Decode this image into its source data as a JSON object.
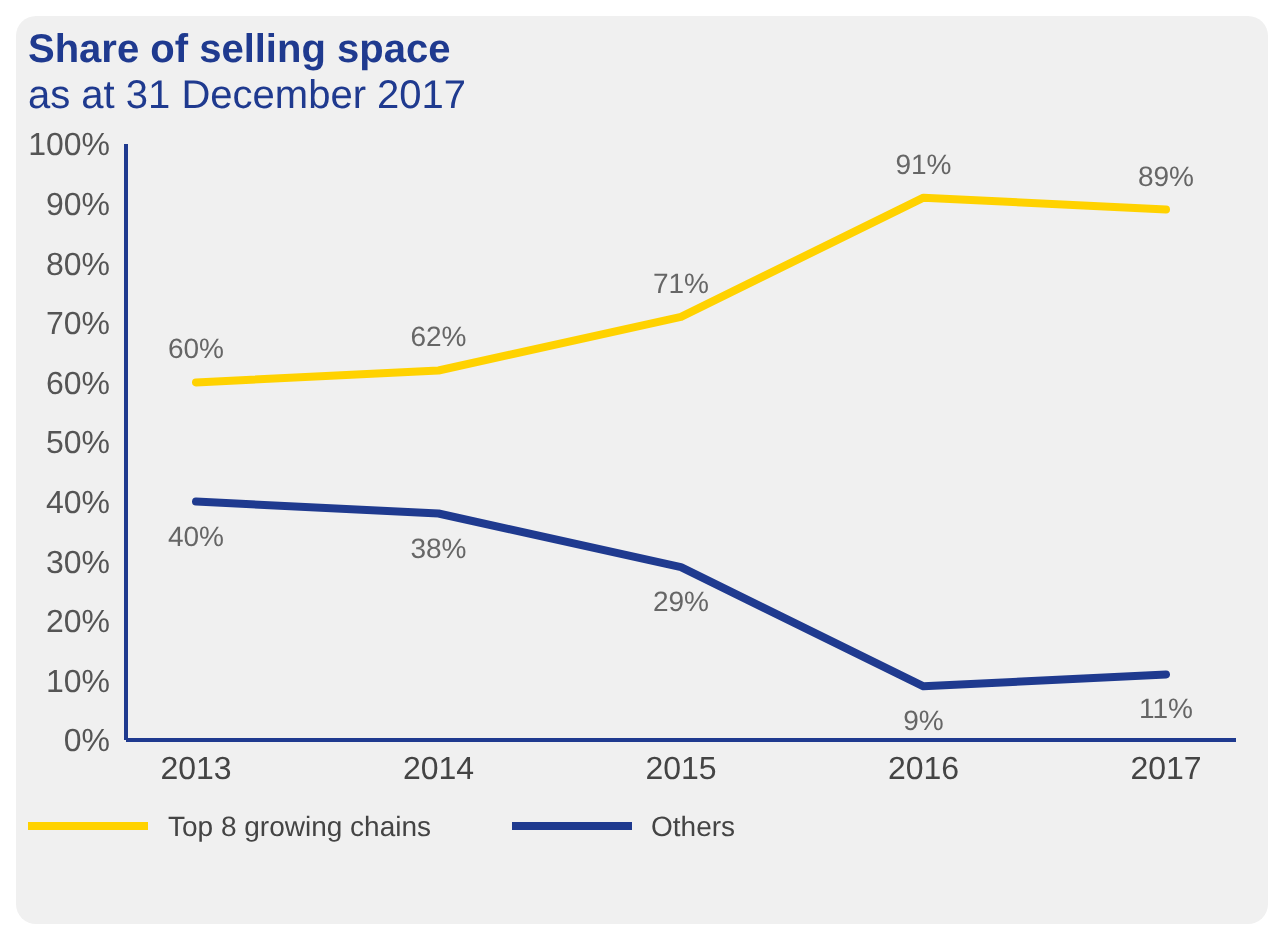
{
  "chart_data": {
    "type": "line",
    "title": "Share of selling space",
    "subtitle": "as at 31 December 2017",
    "categories": [
      "2013",
      "2014",
      "2015",
      "2016",
      "2017"
    ],
    "series": [
      {
        "name": "Top 8 growing chains",
        "color": "#ffd200",
        "values": [
          60,
          62,
          71,
          91,
          89
        ],
        "value_labels": [
          "60%",
          "62%",
          "71%",
          "91%",
          "89%"
        ]
      },
      {
        "name": "Others",
        "color": "#1f3a8f",
        "values": [
          40,
          38,
          29,
          9,
          11
        ],
        "value_labels": [
          "40%",
          "38%",
          "29%",
          "9%",
          "11%"
        ]
      }
    ],
    "ylim": [
      0,
      100
    ],
    "yticks": [
      {
        "value": 0,
        "label": "0%"
      },
      {
        "value": 10,
        "label": "10%"
      },
      {
        "value": 20,
        "label": "20%"
      },
      {
        "value": 30,
        "label": "30%"
      },
      {
        "value": 40,
        "label": "40%"
      },
      {
        "value": 50,
        "label": "50%"
      },
      {
        "value": 60,
        "label": "60%"
      },
      {
        "value": 70,
        "label": "70%"
      },
      {
        "value": 80,
        "label": "80%"
      },
      {
        "value": 90,
        "label": "90%"
      },
      {
        "value": 100,
        "label": "100%"
      }
    ],
    "grid": false,
    "legend": "bottom left",
    "marker": "none",
    "line_style": "solid"
  }
}
